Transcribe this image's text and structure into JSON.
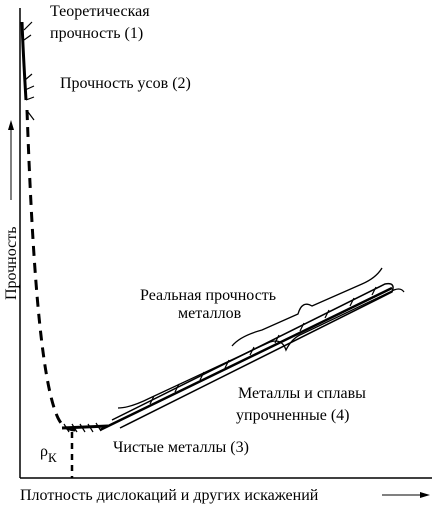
{
  "labels": {
    "theoretical": [
      "Теоретическая",
      "прочность (1)"
    ],
    "whiskers": "Прочность усов (2)",
    "real": [
      "Реальная прочность",
      "металлов"
    ],
    "strengthened": [
      "Металлы и сплавы",
      "упрочненные (4)"
    ],
    "pure": "Чистые металлы (3)",
    "critical": {
      "symbol": "ρ",
      "subscript": "К"
    }
  },
  "axes": {
    "y_label": "Прочность",
    "x_label": "Плотность дислокаций и других искажений"
  }
}
